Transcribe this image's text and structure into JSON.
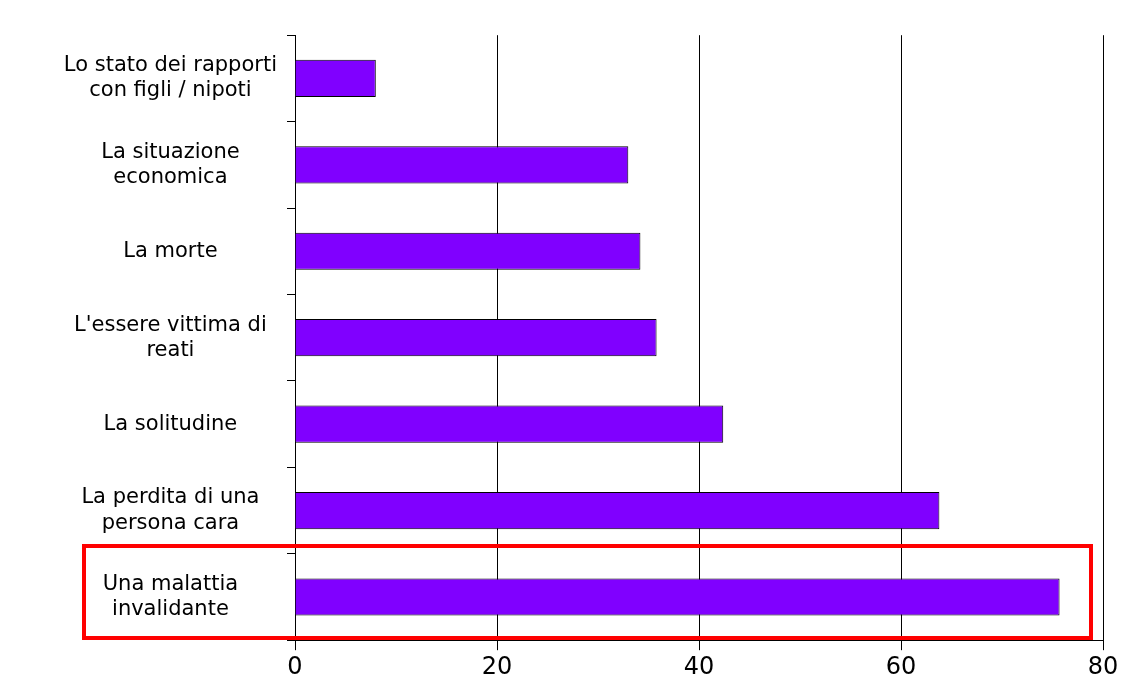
{
  "chart_data": {
    "type": "bar",
    "orientation": "horizontal",
    "categories": [
      "Lo stato dei rapporti con figli / nipoti",
      "La situazione economica",
      "La morte",
      "L'essere vittima di reati",
      "La solitudine",
      "La perdita di una persona cara",
      "Una malattia invalidante"
    ],
    "values": [
      8,
      33,
      34.2,
      35.8,
      42.4,
      63.8,
      75.7
    ],
    "color": "#8000ff",
    "xlim": [
      0,
      80
    ],
    "xticks": [
      0,
      20,
      40,
      60,
      80
    ],
    "grid": "x",
    "legend": false
  }
}
